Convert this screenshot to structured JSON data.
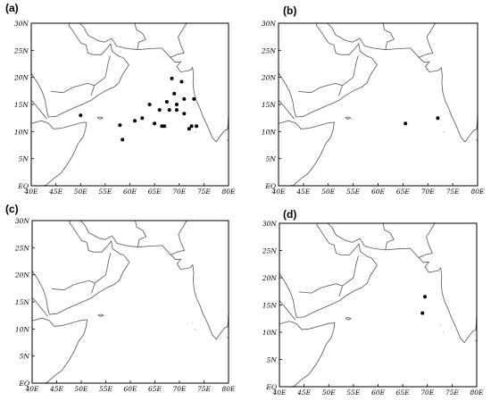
{
  "figure": {
    "panels": [
      {
        "label": "(a)",
        "points": [
          [
            68.5,
            19.8
          ],
          [
            70.5,
            19.2
          ],
          [
            69,
            17
          ],
          [
            71,
            16
          ],
          [
            73,
            16
          ],
          [
            67.5,
            15.5
          ],
          [
            64,
            15
          ],
          [
            69.5,
            15
          ],
          [
            66,
            14
          ],
          [
            68,
            14
          ],
          [
            69.5,
            14
          ],
          [
            71,
            13.3
          ],
          [
            62.5,
            12.5
          ],
          [
            61,
            12
          ],
          [
            65,
            11.5
          ],
          [
            58,
            11.2
          ],
          [
            66.5,
            11
          ],
          [
            67,
            11
          ],
          [
            72.5,
            11
          ],
          [
            73.5,
            11
          ],
          [
            72,
            10.5
          ],
          [
            58.5,
            8.5
          ],
          [
            50,
            13
          ]
        ]
      },
      {
        "label": "(b)",
        "points": [
          [
            65.5,
            11.5
          ],
          [
            72,
            12.5
          ]
        ]
      },
      {
        "label": "(c)",
        "points": []
      },
      {
        "label": "(d)",
        "points": [
          [
            69.5,
            16.5
          ],
          [
            69,
            13.5
          ]
        ]
      }
    ],
    "x_ticks": [
      "40E",
      "45E",
      "50E",
      "55E",
      "60E",
      "65E",
      "70E",
      "75E",
      "80E"
    ],
    "y_ticks": [
      "EQ",
      "5N",
      "10N",
      "15N",
      "20N",
      "25N",
      "30N"
    ],
    "xlim": [
      40,
      80
    ],
    "ylim": [
      0,
      30
    ],
    "colors": {
      "coast": "#555555",
      "frame": "#000000",
      "dot": "#000000"
    }
  }
}
